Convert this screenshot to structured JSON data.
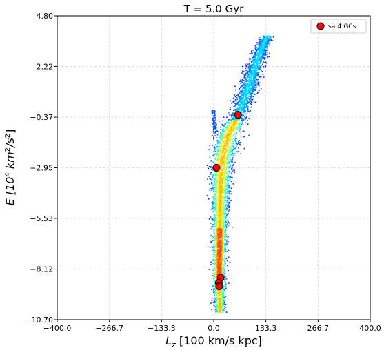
{
  "chart_data": {
    "type": "scatter",
    "title": "T = 5.0 Gyr",
    "xlabel_parts": {
      "pre": "L",
      "sub": "z",
      "post": " [100 km/s kpc]"
    },
    "ylabel_parts": {
      "pre": "E [10",
      "sup1": "4",
      "mid": " km",
      "sup2": "2",
      "post": "/s",
      "sup3": "2",
      "end": "]"
    },
    "xlim": [
      -400.0,
      400.0
    ],
    "ylim": [
      -10.7,
      4.8
    ],
    "xticks": [
      -400.0,
      -266.7,
      -133.3,
      0.0,
      133.3,
      266.7,
      400.0
    ],
    "xtick_labels": [
      "−400.0",
      "−266.7",
      "−133.3",
      "0.0",
      "133.3",
      "266.7",
      "400.0"
    ],
    "yticks": [
      4.8,
      2.22,
      -0.37,
      -2.95,
      -5.53,
      -8.12,
      -10.7
    ],
    "ytick_labels": [
      "4.80",
      "2.22",
      "−0.37",
      "−2.95",
      "−5.53",
      "−8.12",
      "−10.70"
    ],
    "grid": true,
    "legend_position": "top-right",
    "series": [
      {
        "name": "sat4 GCs",
        "color": "#ff0000",
        "edge": "#000000",
        "points": [
          [
            62,
            -0.25
          ],
          [
            7,
            -2.95
          ],
          [
            18,
            -8.55
          ],
          [
            13,
            -8.82
          ],
          [
            14,
            -9.0
          ]
        ]
      }
    ],
    "density_background": {
      "colormap": "jet",
      "ridges": [
        {
          "x": 15,
          "y": -10.3,
          "spread": 6
        },
        {
          "x": 12,
          "y": -9.0,
          "spread": 8
        },
        {
          "x": 14,
          "y": -6.5,
          "spread": 9
        },
        {
          "x": 15,
          "y": -4.5,
          "spread": 11
        },
        {
          "x": 20,
          "y": -2.5,
          "spread": 14
        },
        {
          "x": 35,
          "y": -1.3,
          "spread": 14
        },
        {
          "x": 60,
          "y": -0.3,
          "spread": 12
        },
        {
          "x": 85,
          "y": 1.0,
          "spread": 12
        },
        {
          "x": 110,
          "y": 2.6,
          "spread": 10
        },
        {
          "x": 135,
          "y": 3.8,
          "spread": 8
        }
      ]
    }
  }
}
